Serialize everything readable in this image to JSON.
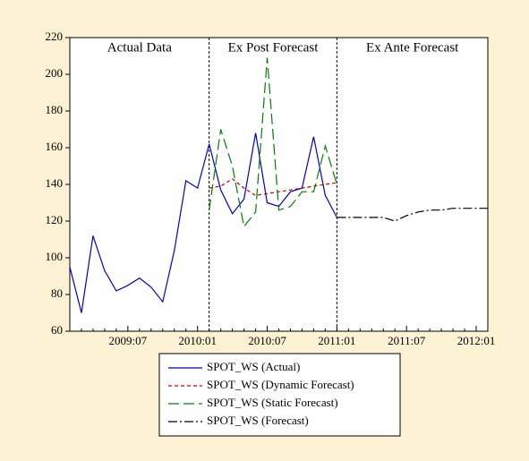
{
  "chart_data": {
    "type": "line",
    "annotations": [
      "Actual Data",
      "Ex Post Forecast",
      "Ex Ante Forecast"
    ],
    "categories": [
      null,
      null,
      null,
      null,
      null,
      "2009:07",
      null,
      null,
      null,
      null,
      null,
      "2010:01",
      null,
      null,
      null,
      null,
      null,
      "2010:07",
      null,
      null,
      null,
      null,
      null,
      "2011:01",
      null,
      null,
      null,
      null,
      null,
      "2011:07",
      null,
      null,
      null,
      null,
      null,
      "2012:01",
      null
    ],
    "series": [
      {
        "name": "SPOT_WS (Actual)",
        "color": "#0000cc",
        "dash": "none",
        "values": [
          95,
          70,
          112,
          93,
          82,
          85,
          89,
          84,
          76,
          104,
          142,
          138,
          162,
          137,
          124,
          132,
          168,
          130,
          128,
          136,
          138,
          166,
          134,
          122,
          null,
          null,
          null,
          null,
          null,
          null,
          null,
          null,
          null,
          null,
          null,
          null,
          null
        ]
      },
      {
        "name": "SPOT_WS (Dynamic Forecast)",
        "color": "#cc0000",
        "dash": "4 3",
        "values": [
          null,
          null,
          null,
          null,
          null,
          null,
          null,
          null,
          null,
          null,
          null,
          null,
          138,
          139,
          143,
          138,
          134,
          135,
          136,
          137,
          138,
          139,
          140,
          141,
          null,
          null,
          null,
          null,
          null,
          null,
          null,
          null,
          null,
          null,
          null,
          null,
          null
        ]
      },
      {
        "name": "SPOT_WS (Static Forecast)",
        "color": "#008000",
        "dash": "12 5",
        "values": [
          null,
          null,
          null,
          null,
          null,
          null,
          null,
          null,
          null,
          null,
          null,
          null,
          126,
          170,
          150,
          117,
          125,
          209,
          126,
          128,
          136,
          136,
          161,
          140,
          null,
          null,
          null,
          null,
          null,
          null,
          null,
          null,
          null,
          null,
          null,
          null,
          null
        ]
      },
      {
        "name": "SPOT_WS (Forecast)",
        "color": "#000000",
        "dash": "10 3 2 3",
        "values": [
          null,
          null,
          null,
          null,
          null,
          null,
          null,
          null,
          null,
          null,
          null,
          null,
          null,
          null,
          null,
          null,
          null,
          null,
          null,
          null,
          null,
          null,
          null,
          122,
          122,
          122,
          122,
          122,
          120,
          123,
          125,
          126,
          126,
          127,
          127,
          127,
          127
        ]
      }
    ],
    "ylim": [
      60,
      220
    ],
    "yticks": [
      60,
      80,
      100,
      120,
      140,
      160,
      180,
      200,
      220
    ],
    "grid": false
  }
}
